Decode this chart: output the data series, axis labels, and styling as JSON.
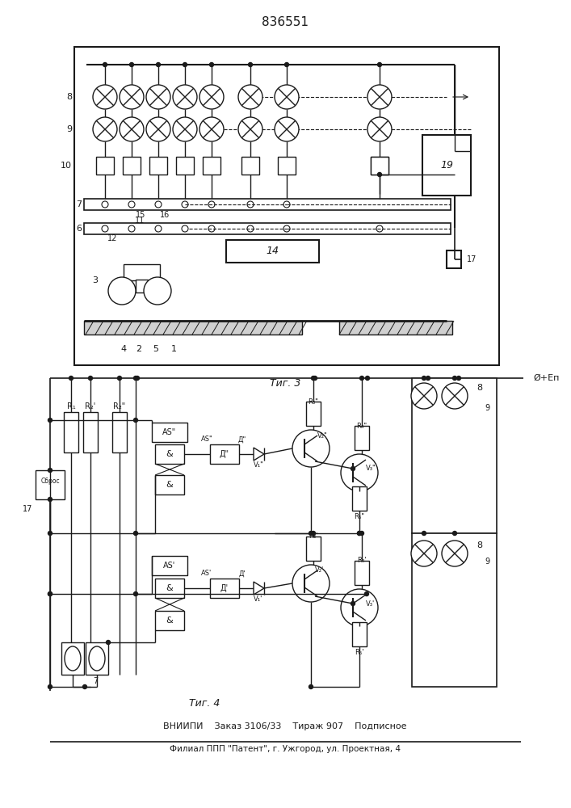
{
  "title": "836551",
  "fig3_label": "Τиг. 3",
  "fig4_label": "Τиг. 4",
  "footer_line1": "ВНИИПИ    Заказ 3106/33    Тираж 907    Подписное",
  "footer_line2": "Филиал ППП \"Патент\", г. Ужгород, ул. Проектная, 4",
  "bg_color": "#ffffff",
  "line_color": "#1a1a1a"
}
